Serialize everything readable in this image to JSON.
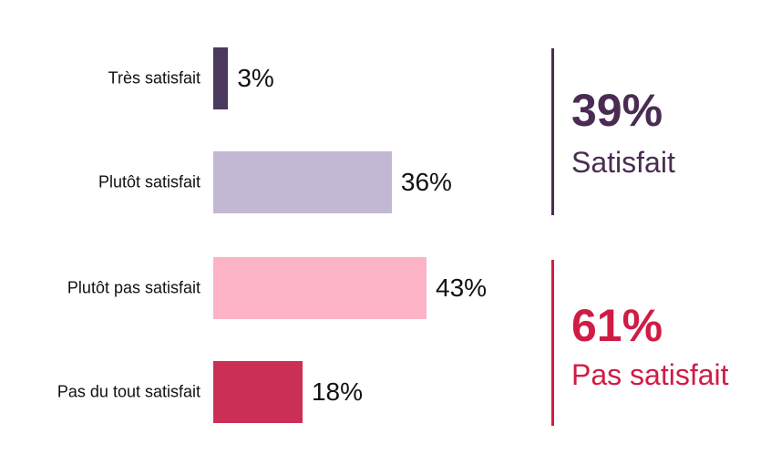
{
  "chart_data": {
    "type": "bar",
    "orientation": "horizontal",
    "categories": [
      "Très satisfait",
      "Plutôt satisfait",
      "Plutôt pas satisfait",
      "Pas du tout satisfait"
    ],
    "values": [
      3,
      36,
      43,
      18
    ],
    "labels": [
      "3%",
      "36%",
      "43%",
      "18%"
    ],
    "colors": [
      "#4b3a5e",
      "#c3b8d3",
      "#fdb3c6",
      "#cc2f55"
    ],
    "xlim": [
      0,
      43
    ],
    "summaries": [
      {
        "value": "39%",
        "label": "Satisfait",
        "color": "#4a2c52"
      },
      {
        "value": "61%",
        "label": "Pas satisfait",
        "color": "#d01c45"
      }
    ]
  }
}
